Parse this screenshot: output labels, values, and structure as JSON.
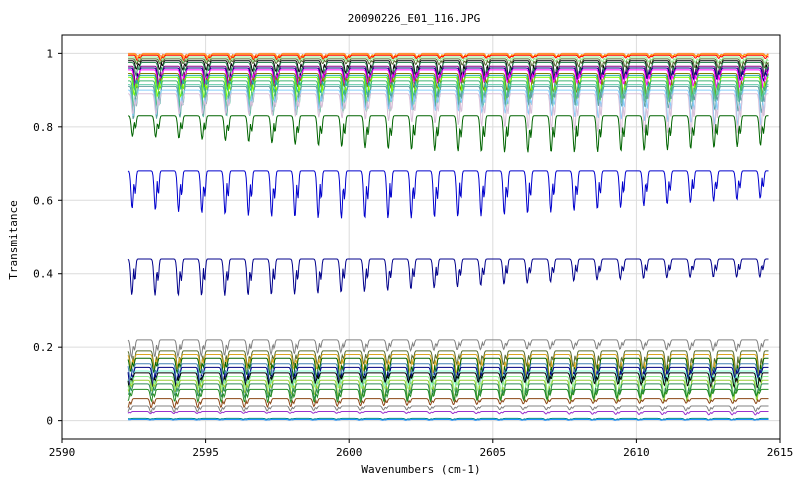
{
  "chart_data": {
    "type": "line",
    "title": "20090226_E01_116.JPG",
    "xlabel": "Wavenumbers (cm-1)",
    "ylabel": "Transmitance",
    "xlim": [
      2590,
      2615
    ],
    "ylim": [
      -0.05,
      1.05
    ],
    "x_ticks": [
      2590,
      2595,
      2600,
      2605,
      2610,
      2615
    ],
    "y_ticks": [
      0,
      0.2,
      0.4,
      0.6,
      0.8,
      1
    ],
    "x_tick_labels": [
      "2590",
      "2595",
      "2600",
      "2605",
      "2610",
      "2615"
    ],
    "y_tick_labels": [
      "0",
      "0.2",
      "0.4",
      "0.6",
      "0.8",
      "1"
    ],
    "grid": true,
    "legend": "none",
    "x_range_data": [
      2592.3,
      2614.6
    ],
    "line_period_cm1": 0.81,
    "series": [
      {
        "color": "#ff7f50",
        "base": 1.0,
        "depth": 0.01
      },
      {
        "color": "#ffa500",
        "base": 0.998,
        "depth": 0.012
      },
      {
        "color": "#ff0000",
        "base": 0.995,
        "depth": 0.015
      },
      {
        "color": "#90ee90",
        "base": 0.99,
        "depth": 0.02
      },
      {
        "color": "#556b2f",
        "base": 0.985,
        "depth": 0.025
      },
      {
        "color": "#000000",
        "base": 0.98,
        "depth": 0.045
      },
      {
        "color": "#2e8b57",
        "base": 0.975,
        "depth": 0.05
      },
      {
        "color": "#8b008b",
        "base": 0.965,
        "depth": 0.055
      },
      {
        "color": "#000080",
        "base": 0.96,
        "depth": 0.06
      },
      {
        "color": "#ff00ff",
        "base": 0.955,
        "depth": 0.065
      },
      {
        "color": "#808000",
        "base": 0.945,
        "depth": 0.07
      },
      {
        "color": "#20b2aa",
        "base": 0.94,
        "depth": 0.075
      },
      {
        "color": "#7cfc00",
        "base": 0.935,
        "depth": 0.08
      },
      {
        "color": "#3cb371",
        "base": 0.925,
        "depth": 0.085
      },
      {
        "color": "#66cdaa",
        "base": 0.915,
        "depth": 0.09
      },
      {
        "color": "#5f9ea0",
        "base": 0.91,
        "depth": 0.1
      },
      {
        "color": "#87cefa",
        "base": 0.9,
        "depth": 0.105
      },
      {
        "color": "#d8bfd8",
        "base": 0.89,
        "depth": 0.11
      },
      {
        "color": "#006400",
        "base": 0.83,
        "depth": 0.1
      },
      {
        "color": "#0000cd",
        "base": 0.68,
        "depth": 0.13
      },
      {
        "color": "#00008b",
        "base": 0.44,
        "depth": 0.1
      },
      {
        "color": "#808080",
        "base": 0.22,
        "depth": 0.05
      },
      {
        "color": "#556b2f",
        "base": 0.19,
        "depth": 0.07
      },
      {
        "color": "#daa520",
        "base": 0.18,
        "depth": 0.075
      },
      {
        "color": "#006400",
        "base": 0.17,
        "depth": 0.07
      },
      {
        "color": "#4682b4",
        "base": 0.155,
        "depth": 0.06
      },
      {
        "color": "#000080",
        "base": 0.145,
        "depth": 0.055
      },
      {
        "color": "#7fffd4",
        "base": 0.135,
        "depth": 0.06
      },
      {
        "color": "#000000",
        "base": 0.13,
        "depth": 0.05
      },
      {
        "color": "#90ee90",
        "base": 0.12,
        "depth": 0.06
      },
      {
        "color": "#9acd32",
        "base": 0.11,
        "depth": 0.06
      },
      {
        "color": "#2e8b57",
        "base": 0.1,
        "depth": 0.045
      },
      {
        "color": "#228b22",
        "base": 0.085,
        "depth": 0.035
      },
      {
        "color": "#8b4513",
        "base": 0.06,
        "depth": 0.025
      },
      {
        "color": "#808080",
        "base": 0.04,
        "depth": 0.02
      },
      {
        "color": "#9932cc",
        "base": 0.025,
        "depth": 0.01
      },
      {
        "color": "#008b8b",
        "base": 0.006,
        "depth": 0.004
      },
      {
        "color": "#1e90ff",
        "base": 0.003,
        "depth": 0.002
      }
    ]
  }
}
